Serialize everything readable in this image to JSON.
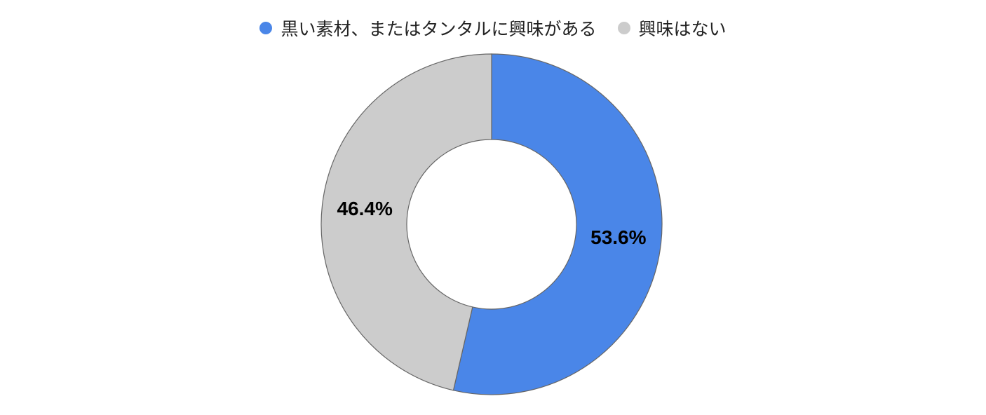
{
  "chart_data": {
    "type": "donut",
    "series": [
      {
        "name": "黒い素材、またはタンタルに興味がある",
        "color": "#4a86e8"
      },
      {
        "name": "興味はない",
        "color": "#cccccc"
      }
    ],
    "values": [
      53.6,
      46.4
    ],
    "value_labels": [
      "53.6%",
      "46.4%"
    ],
    "legend": "top"
  }
}
